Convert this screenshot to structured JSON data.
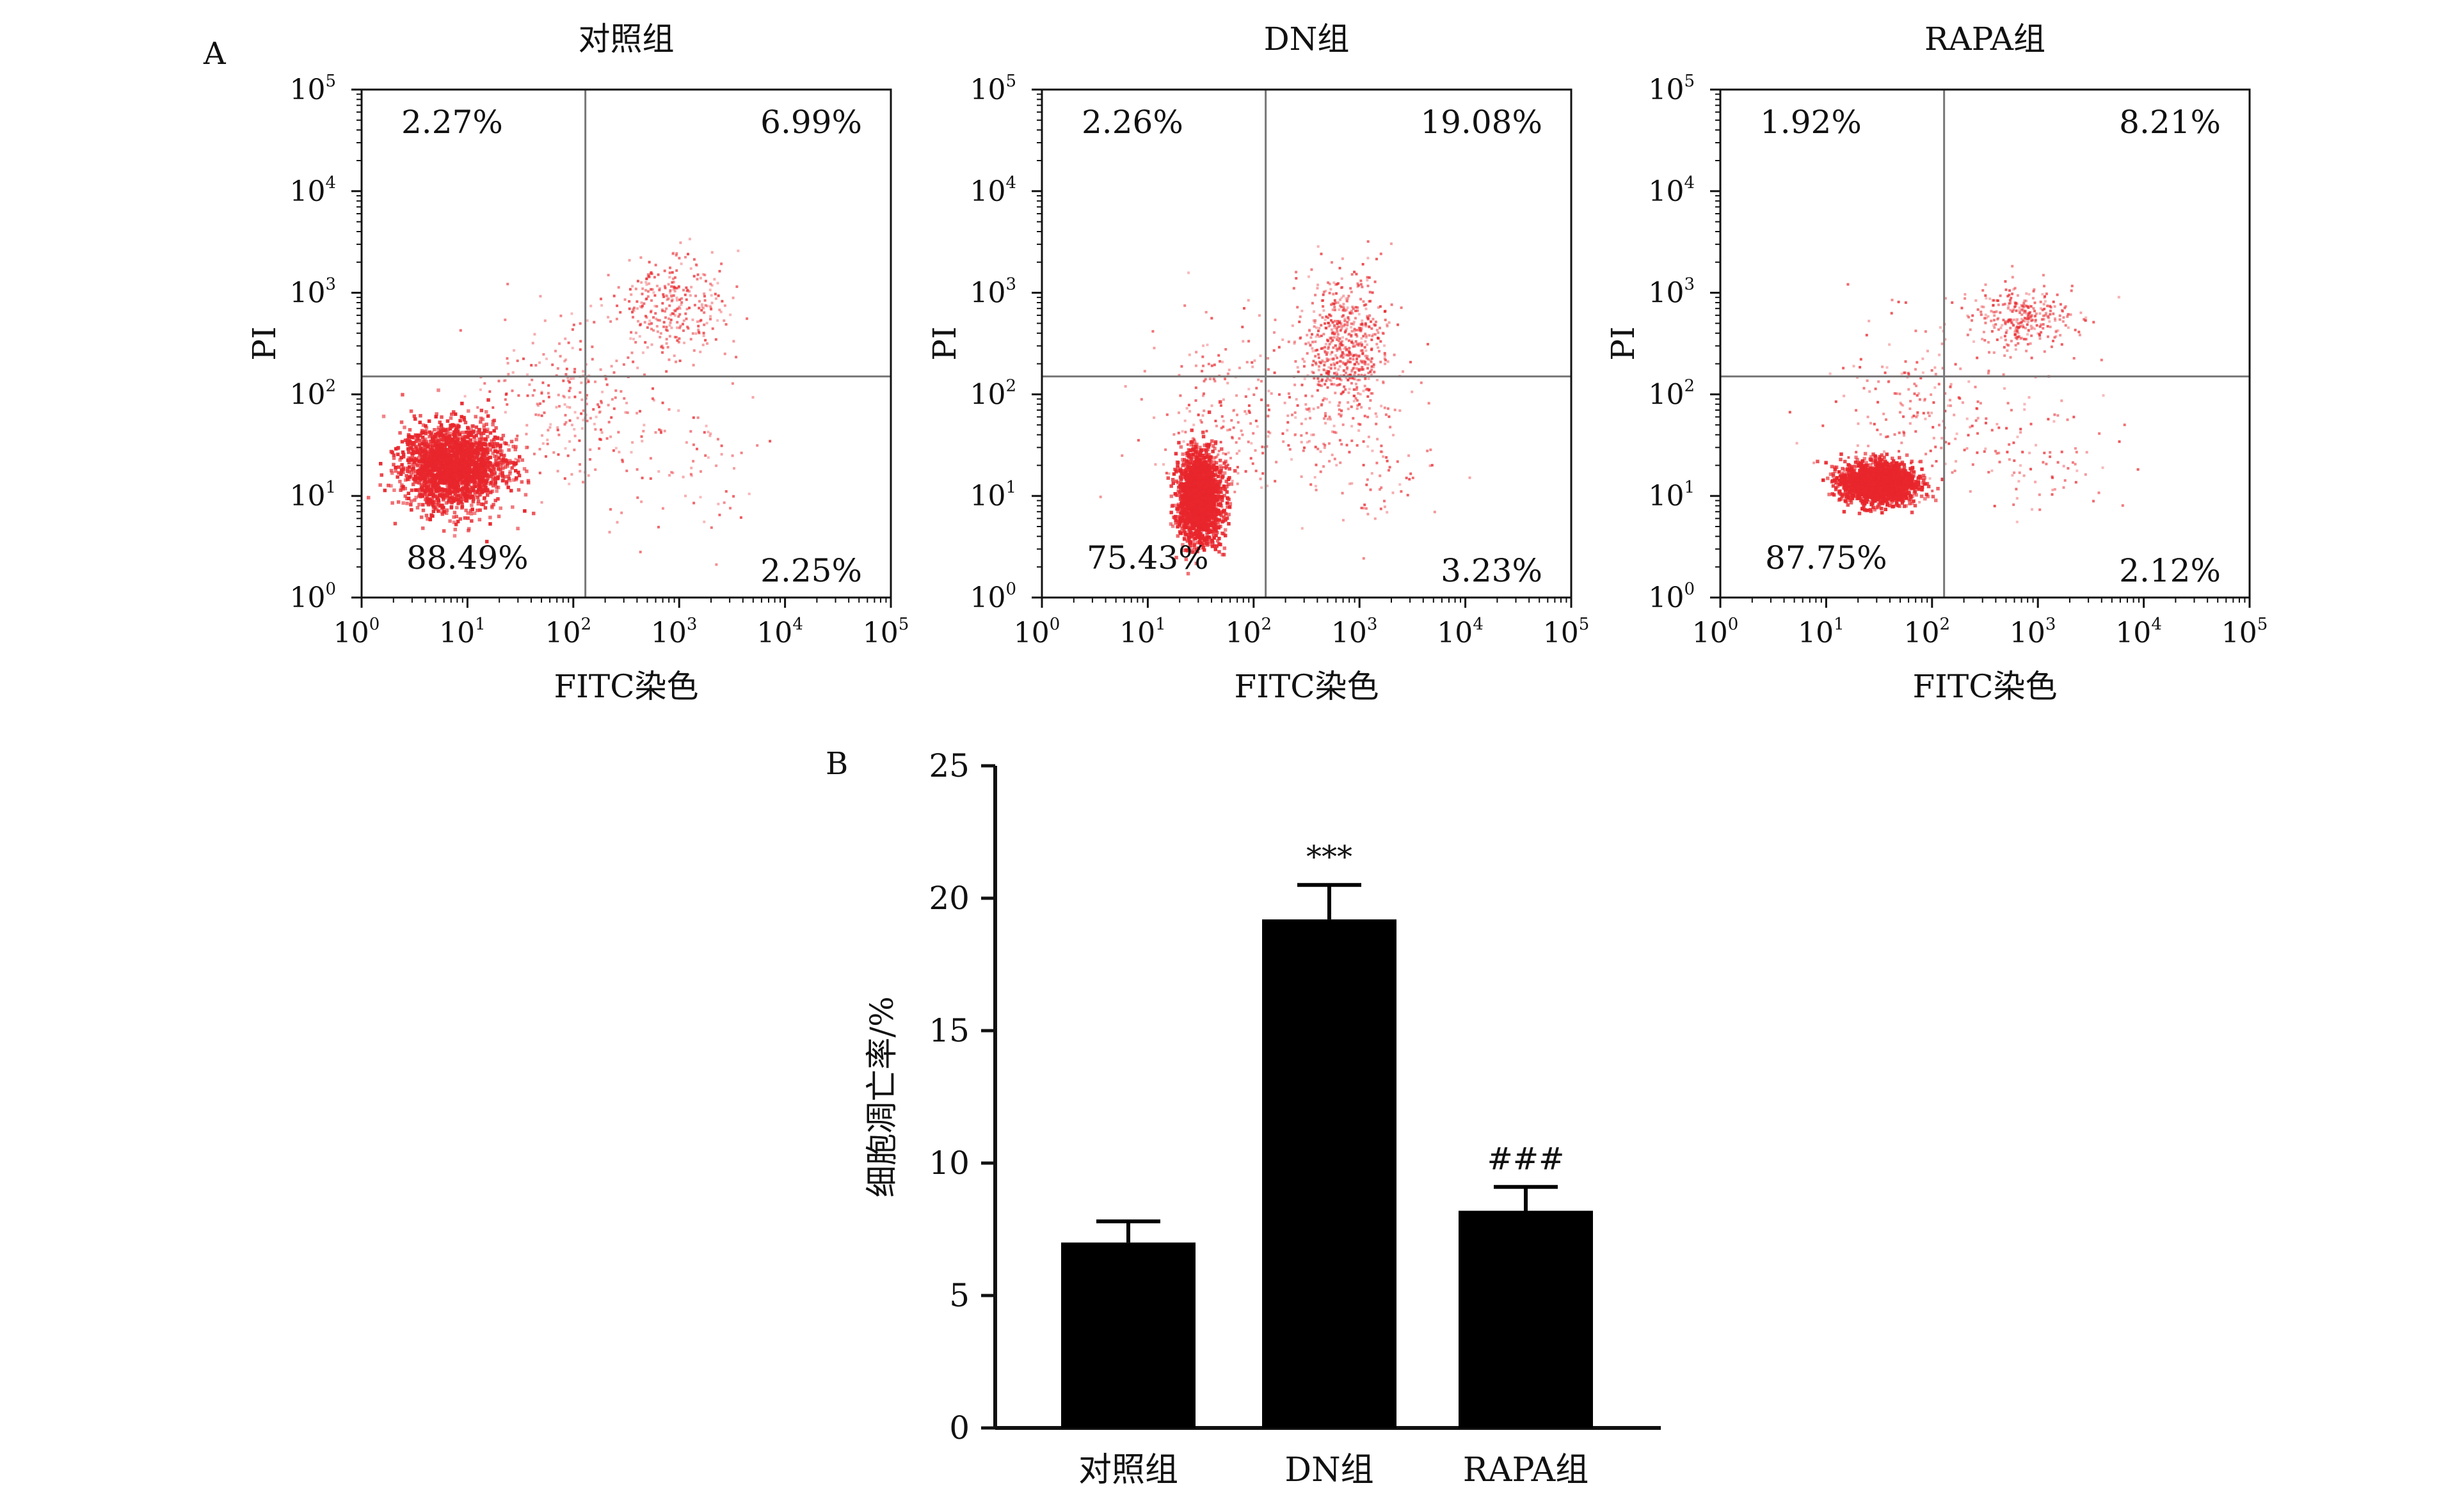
{
  "panel_a_label": "A",
  "panel_b_label": "B",
  "colors": {
    "dots": "#e8262c",
    "axis": "#111111",
    "quadrant_line": "#777777",
    "bar": "#000000"
  },
  "chart_data": [
    {
      "type": "scatter",
      "title": "对照组",
      "xlabel": "FITC染色",
      "ylabel": "PI",
      "xscale": "log",
      "yscale": "log",
      "xlim": [
        1,
        100000
      ],
      "ylim": [
        1,
        100000
      ],
      "tick_base": "10",
      "tick_exponents": [
        "0",
        "1",
        "2",
        "3",
        "4",
        "5"
      ],
      "quadrant_gate": {
        "x": 130,
        "y": 150
      },
      "quadrant_percentages": {
        "upper_left": "2.27%",
        "upper_right": "6.99%",
        "lower_left": "88.49%",
        "lower_right": "2.25%"
      },
      "populations": [
        {
          "cx": 7,
          "cy": 20,
          "spread_x": 0.24,
          "spread_y": 0.2,
          "count": 2200,
          "dense": true
        },
        {
          "cx": 900,
          "cy": 800,
          "spread_x": 0.24,
          "spread_y": 0.26,
          "count": 300
        },
        {
          "cx": 80,
          "cy": 100,
          "spread_x": 0.4,
          "spread_y": 0.35,
          "count": 220
        },
        {
          "cx": 1000,
          "cy": 25,
          "spread_x": 0.5,
          "spread_y": 0.4,
          "count": 90
        }
      ]
    },
    {
      "type": "scatter",
      "title": "DN组",
      "xlabel": "FITC染色",
      "ylabel": "PI",
      "xscale": "log",
      "yscale": "log",
      "xlim": [
        1,
        100000
      ],
      "ylim": [
        1,
        100000
      ],
      "tick_base": "10",
      "tick_exponents": [
        "0",
        "1",
        "2",
        "3",
        "4",
        "5"
      ],
      "quadrant_gate": {
        "x": 130,
        "y": 150
      },
      "quadrant_percentages": {
        "upper_left": "2.26%",
        "upper_right": "19.08%",
        "lower_left": "75.43%",
        "lower_right": "3.23%"
      },
      "populations": [
        {
          "cx": 30,
          "cy": 10,
          "spread_x": 0.1,
          "spread_y": 0.22,
          "count": 1900,
          "dense": true
        },
        {
          "cx": 700,
          "cy": 300,
          "spread_x": 0.22,
          "spread_y": 0.35,
          "count": 650
        },
        {
          "cx": 60,
          "cy": 60,
          "spread_x": 0.4,
          "spread_y": 0.45,
          "count": 220
        },
        {
          "cx": 1000,
          "cy": 25,
          "spread_x": 0.4,
          "spread_y": 0.35,
          "count": 110
        }
      ]
    },
    {
      "type": "scatter",
      "title": "RAPA组",
      "xlabel": "FITC染色",
      "ylabel": "PI",
      "xscale": "log",
      "yscale": "log",
      "xlim": [
        1,
        100000
      ],
      "ylim": [
        1,
        100000
      ],
      "tick_base": "10",
      "tick_exponents": [
        "0",
        "1",
        "2",
        "3",
        "4",
        "5"
      ],
      "quadrant_gate": {
        "x": 130,
        "y": 150
      },
      "quadrant_percentages": {
        "upper_left": "1.92%",
        "upper_right": "8.21%",
        "lower_left": "87.75%",
        "lower_right": "2.12%"
      },
      "populations": [
        {
          "cx": 30,
          "cy": 14,
          "spread_x": 0.17,
          "spread_y": 0.1,
          "count": 1900,
          "dense": true
        },
        {
          "cx": 700,
          "cy": 600,
          "spread_x": 0.24,
          "spread_y": 0.15,
          "count": 300
        },
        {
          "cx": 80,
          "cy": 80,
          "spread_x": 0.45,
          "spread_y": 0.4,
          "count": 200
        },
        {
          "cx": 1000,
          "cy": 25,
          "spread_x": 0.4,
          "spread_y": 0.35,
          "count": 80
        }
      ]
    },
    {
      "type": "bar",
      "categories": [
        "对照组",
        "DN组",
        "RAPA组"
      ],
      "values": [
        7.0,
        19.2,
        8.2
      ],
      "errors": [
        0.8,
        1.3,
        0.9
      ],
      "annotations": [
        "",
        "***",
        "###"
      ],
      "ylabel": "细胞凋亡率/%",
      "xlabel": "",
      "ylim": [
        0,
        25
      ],
      "yticks": [
        "0",
        "5",
        "10",
        "15",
        "20",
        "25"
      ]
    }
  ]
}
